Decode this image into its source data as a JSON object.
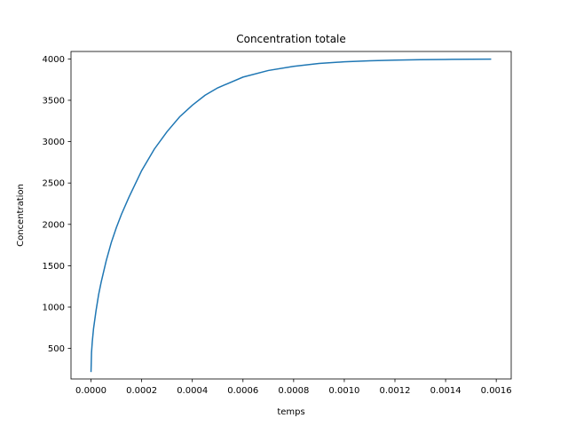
{
  "chart_data": {
    "type": "line",
    "title": "Concentration totale",
    "xlabel": "temps",
    "ylabel": "Concentration",
    "xlim": [
      -7.9e-05,
      0.001659
    ],
    "ylim": [
      131,
      4090
    ],
    "x_ticks": [
      0.0,
      0.0002,
      0.0004,
      0.0006,
      0.0008,
      0.001,
      0.0012,
      0.0014,
      0.0016
    ],
    "x_tick_labels": [
      "0.0000",
      "0.0002",
      "0.0004",
      "0.0006",
      "0.0008",
      "0.0010",
      "0.0012",
      "0.0014",
      "0.0016"
    ],
    "y_ticks": [
      500,
      1000,
      1500,
      2000,
      2500,
      3000,
      3500,
      4000
    ],
    "y_tick_labels": [
      "500",
      "1000",
      "1500",
      "2000",
      "2500",
      "3000",
      "3500",
      "4000"
    ],
    "grid": false,
    "series": [
      {
        "color": "#1f77b4",
        "x": [
          0.0,
          2e-06,
          5e-06,
          1e-05,
          2e-05,
          3e-05,
          4e-05,
          6e-05,
          8e-05,
          0.0001,
          0.00012,
          0.00015,
          0.0002,
          0.00025,
          0.0003,
          0.00035,
          0.0004,
          0.00045,
          0.0005,
          0.0006,
          0.0007,
          0.0008,
          0.0009,
          0.001,
          0.0011,
          0.0012,
          0.0013,
          0.0014,
          0.0015,
          0.00158
        ],
        "y": [
          215,
          450,
          580,
          740,
          960,
          1150,
          1300,
          1560,
          1780,
          1960,
          2120,
          2330,
          2650,
          2910,
          3120,
          3300,
          3440,
          3560,
          3650,
          3780,
          3860,
          3910,
          3945,
          3965,
          3978,
          3986,
          3991,
          3994,
          3996,
          3997
        ]
      }
    ]
  }
}
